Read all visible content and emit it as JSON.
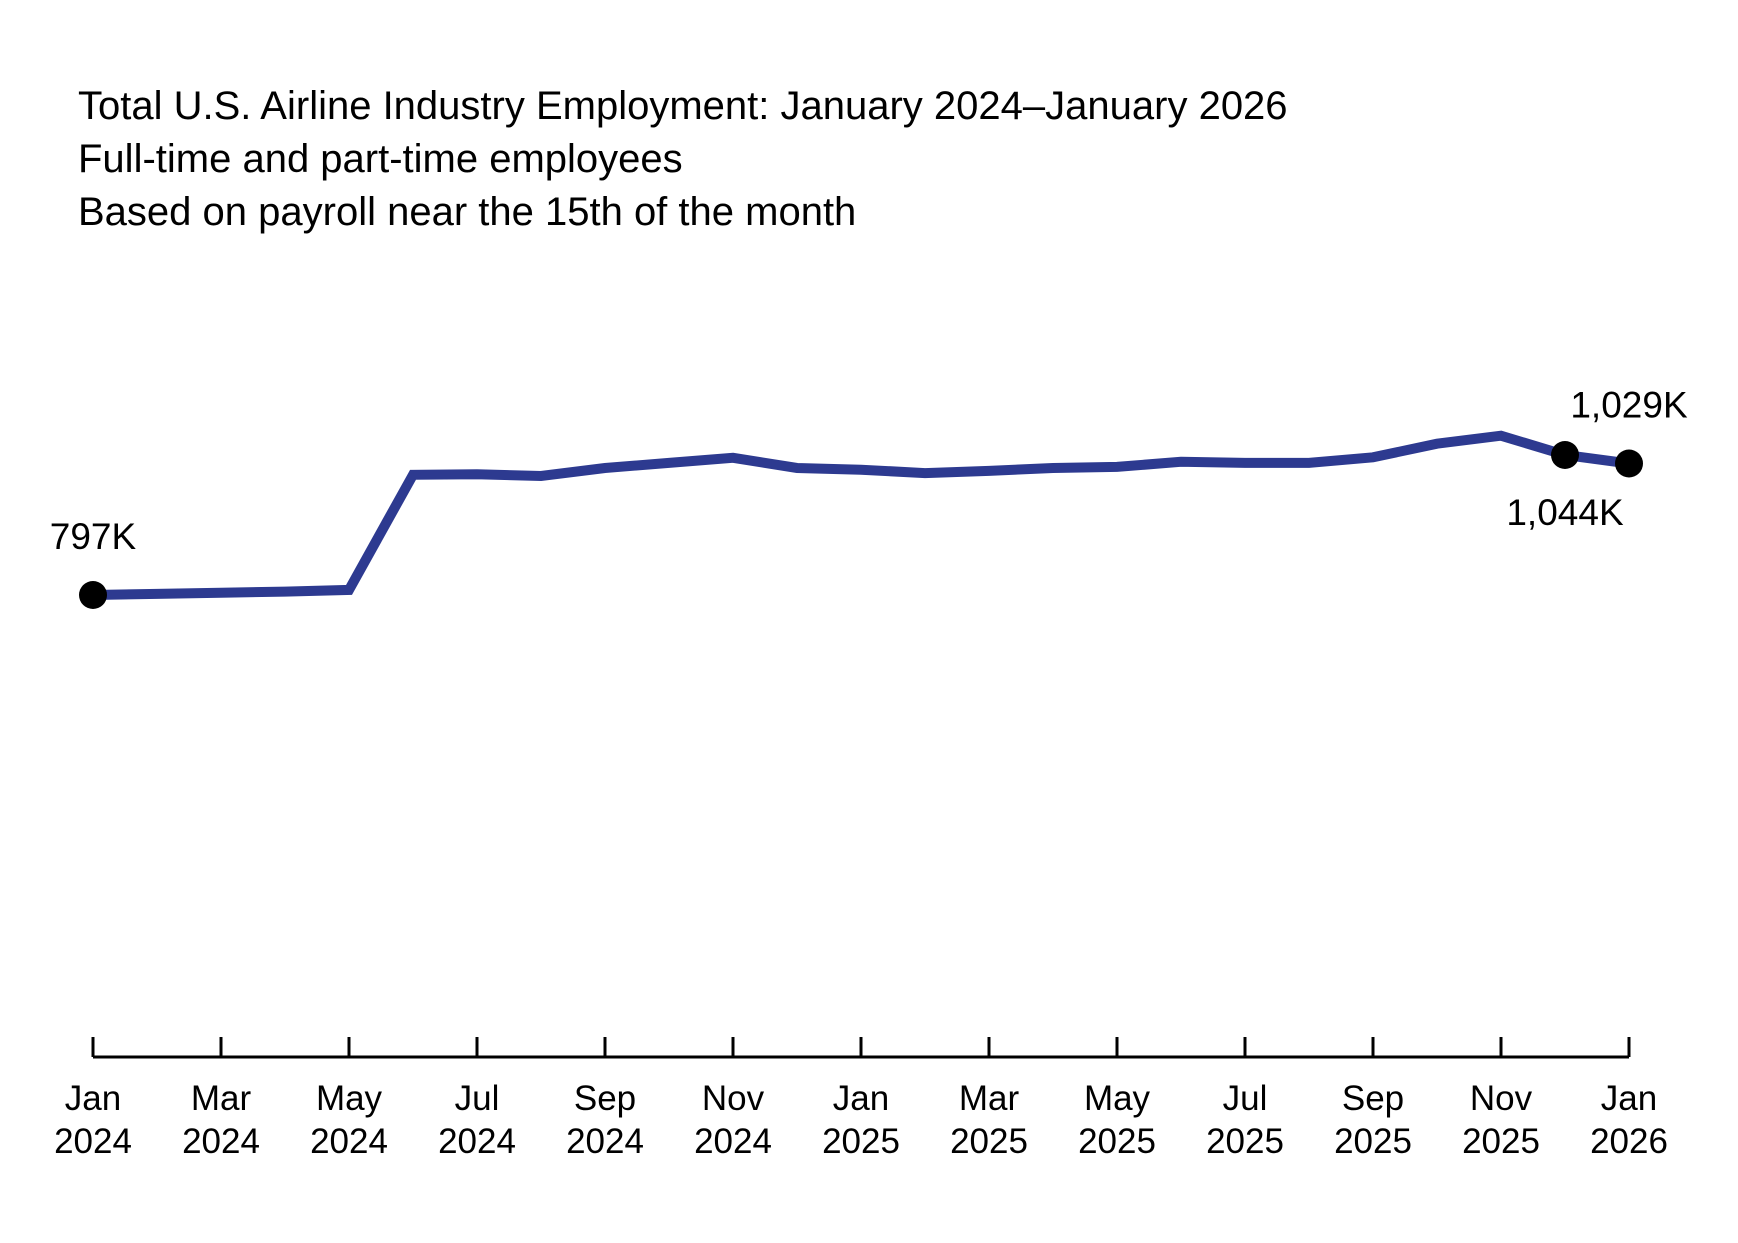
{
  "title": {
    "line1": "Total U.S. Airline Industry Employment: January 2024–January 2026",
    "line2": "Full-time and part-time employees",
    "line3": "Based on payroll near the 15th of the month"
  },
  "chart_data": {
    "type": "line",
    "title": "Total U.S. Airline Industry Employment: January 2024–January 2026",
    "subtitle": "Full-time and part-time employees",
    "note": "Based on payroll near the 15th of the month",
    "unit": "thousands of employees",
    "grid": false,
    "legend": null,
    "y_axis_shown": false,
    "line_color": "#2d3a90",
    "marker_color": "#000000",
    "x": [
      "Jan 2024",
      "Feb 2024",
      "Mar 2024",
      "Apr 2024",
      "May 2024",
      "Jun 2024",
      "Jul 2024",
      "Aug 2024",
      "Sep 2024",
      "Oct 2024",
      "Nov 2024",
      "Dec 2024",
      "Jan 2025",
      "Feb 2025",
      "Mar 2025",
      "Apr 2025",
      "May 2025",
      "Jun 2025",
      "Jul 2025",
      "Aug 2025",
      "Sep 2025",
      "Oct 2025",
      "Nov 2025",
      "Dec 2025",
      "Jan 2026"
    ],
    "values": [
      797,
      799,
      801,
      803,
      806,
      1009,
      1010,
      1007,
      1021,
      1030,
      1039,
      1021,
      1018,
      1012,
      1016,
      1021,
      1023,
      1032,
      1030,
      1030,
      1040,
      1064,
      1078,
      1044,
      1029
    ],
    "x_tick_labels": [
      [
        "Jan",
        "2024"
      ],
      [
        "Mar",
        "2024"
      ],
      [
        "May",
        "2024"
      ],
      [
        "Jul",
        "2024"
      ],
      [
        "Sep",
        "2024"
      ],
      [
        "Nov",
        "2024"
      ],
      [
        "Jan",
        "2025"
      ],
      [
        "Mar",
        "2025"
      ],
      [
        "May",
        "2025"
      ],
      [
        "Jul",
        "2025"
      ],
      [
        "Sep",
        "2025"
      ],
      [
        "Nov",
        "2025"
      ],
      [
        "Jan",
        "2026"
      ]
    ],
    "marked_points": [
      {
        "month": "Jan 2024",
        "index": 0,
        "label": "797K",
        "label_position": "above"
      },
      {
        "month": "Dec 2025",
        "index": 23,
        "label": "1,044K",
        "label_position": "below"
      },
      {
        "month": "Jan 2026",
        "index": 24,
        "label": "1,029K",
        "label_position": "above"
      }
    ]
  }
}
